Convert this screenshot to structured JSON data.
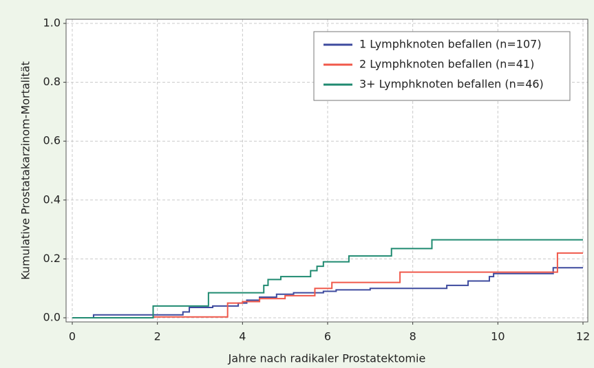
{
  "chart_data": {
    "type": "line",
    "step": "post",
    "x_label": "Jahre nach radikaler Prostatektomie",
    "y_label": "Kumulative Prostatakarzinom-Mortalität",
    "xlim": [
      0,
      12
    ],
    "xticks": [
      0,
      2,
      4,
      6,
      8,
      10,
      12
    ],
    "ylim": [
      0,
      1
    ],
    "yticks": [
      {
        "value": 0,
        "label": "0.0"
      },
      0.2,
      0.4,
      0.6,
      0.8,
      {
        "value": 1,
        "label": "1.0"
      }
    ],
    "grid": true,
    "legend": "upper right",
    "series": [
      {
        "name": "1 Lymphknoten befallen (n=107)",
        "color": "#3d4a9e",
        "x": [
          0,
          0.5,
          2.6,
          2.75,
          3.3,
          3.9,
          4.1,
          4.4,
          4.8,
          5.2,
          5.9,
          6.2,
          7.0,
          8.8,
          9.3,
          9.8,
          9.9,
          11.3,
          12
        ],
        "values": [
          0,
          0.01,
          0.02,
          0.035,
          0.04,
          0.05,
          0.06,
          0.07,
          0.08,
          0.085,
          0.09,
          0.095,
          0.1,
          0.11,
          0.125,
          0.14,
          0.15,
          0.17,
          0.17
        ]
      },
      {
        "name": "2 Lymphknoten befallen (n=41)",
        "color": "#f0584a",
        "x": [
          0,
          1.9,
          3.65,
          4.0,
          4.4,
          5.0,
          5.7,
          6.1,
          7.7,
          11.4,
          12
        ],
        "values": [
          0,
          0.003,
          0.05,
          0.055,
          0.065,
          0.075,
          0.1,
          0.12,
          0.155,
          0.22,
          0.22
        ]
      },
      {
        "name": "3+ Lymphknoten befallen (n=46)",
        "color": "#1f8a70",
        "x": [
          0,
          1.9,
          3.2,
          4.5,
          4.6,
          4.9,
          5.6,
          5.75,
          5.9,
          6.5,
          7.5,
          8.45,
          12
        ],
        "values": [
          0,
          0.04,
          0.085,
          0.11,
          0.13,
          0.14,
          0.16,
          0.175,
          0.19,
          0.21,
          0.235,
          0.265,
          0.265
        ]
      }
    ]
  }
}
